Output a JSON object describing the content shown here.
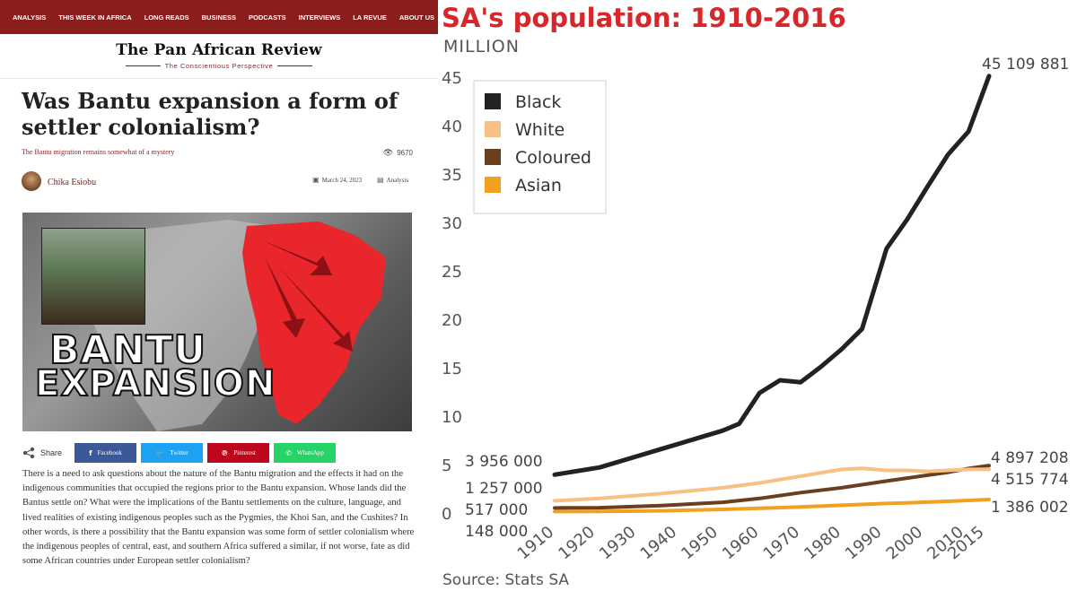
{
  "nav": {
    "items": [
      "ANALYSIS",
      "THIS WEEK IN AFRICA",
      "LONG READS",
      "BUSINESS",
      "PODCASTS",
      "INTERVIEWS",
      "LA REVUE",
      "ABOUT US"
    ]
  },
  "site": {
    "title": "The Pan African Review",
    "tagline": "The Conscientious Perspective"
  },
  "article": {
    "title": "Was Bantu expansion a form of settler colonialism?",
    "subtitle": "The Bantu migration remains somewhat of a mystery",
    "views": "9670",
    "author": "Chika Esiobu",
    "date": "March 24, 2023",
    "category": "Analysis",
    "hero_text_line1": "BANTU",
    "hero_text_line2": "EXPANSION",
    "body": "There is a need to ask questions about the nature of the Bantu migration and the effects it had on the indigenous communities that occupied the regions prior to the Bantu expansion. Whose lands did the Bantus settle on? What were the implications of the Bantu settlements on the culture, language, and lived realities of existing indigenous peoples such as the Pygmies, the Khoi San, and the Cushites? In other words, is there a possibility that the Bantu expansion was some form of settler colonialism where the indigenous peoples of central, east, and southern Africa suffered a similar, if not worse,  fate as did some African countries under European settler colonialism?"
  },
  "share": {
    "label": "Share",
    "buttons": [
      {
        "label": "Facebook",
        "icon": "f",
        "color": "#3b5998"
      },
      {
        "label": "Twitter",
        "icon": "t",
        "color": "#1da1f2"
      },
      {
        "label": "Pinterest",
        "icon": "p",
        "color": "#bd081c"
      },
      {
        "label": "WhatsApp",
        "icon": "w",
        "color": "#25d366"
      }
    ]
  },
  "chart_data": {
    "type": "line",
    "title": "SA's population: 1910-2016",
    "ylabel": "MILLION",
    "source": "Source: Stats SA",
    "ylim": [
      0,
      45
    ],
    "xlim": [
      1910,
      2016
    ],
    "yticks": [
      0,
      5,
      10,
      15,
      20,
      25,
      30,
      35,
      40,
      45
    ],
    "xticks": [
      1910,
      1920,
      1930,
      1940,
      1950,
      1960,
      1970,
      1980,
      1990,
      2000,
      2010,
      2015
    ],
    "series": [
      {
        "name": "Black",
        "color": "#222222",
        "x": [
          1910,
          1921,
          1936,
          1951,
          1955,
          1960,
          1965,
          1970,
          1975,
          1980,
          1985,
          1991,
          1996,
          2001,
          2006,
          2011,
          2016
        ],
        "y": [
          3.956,
          4.7,
          6.6,
          8.5,
          9.2,
          12.4,
          13.7,
          13.5,
          15.1,
          16.9,
          19.0,
          27.3,
          30.3,
          33.7,
          37.0,
          39.4,
          45.109881
        ],
        "start_label": "3 956 000",
        "end_label": "45 109 881"
      },
      {
        "name": "White",
        "color": "#f7c084",
        "x": [
          1910,
          1921,
          1936,
          1951,
          1960,
          1970,
          1980,
          1985,
          1991,
          1996,
          2001,
          2006,
          2011,
          2016
        ],
        "y": [
          1.257,
          1.5,
          2.0,
          2.6,
          3.1,
          3.8,
          4.5,
          4.6,
          4.4,
          4.4,
          4.3,
          4.4,
          4.5,
          4.515774
        ],
        "start_label": "1 257 000",
        "end_label": "4 515 774"
      },
      {
        "name": "Coloured",
        "color": "#6b3e1f",
        "x": [
          1910,
          1921,
          1936,
          1951,
          1960,
          1970,
          1980,
          1991,
          1996,
          2001,
          2006,
          2011,
          2016
        ],
        "y": [
          0.517,
          0.55,
          0.77,
          1.1,
          1.5,
          2.1,
          2.6,
          3.3,
          3.6,
          3.9,
          4.2,
          4.6,
          4.897208
        ],
        "start_label": "517 000",
        "end_label": "4 897 208"
      },
      {
        "name": "Asian",
        "color": "#f2a11f",
        "x": [
          1910,
          1921,
          1936,
          1951,
          1960,
          1970,
          1980,
          1991,
          1996,
          2001,
          2006,
          2011,
          2016
        ],
        "y": [
          0.148,
          0.17,
          0.22,
          0.37,
          0.48,
          0.62,
          0.8,
          0.98,
          1.05,
          1.12,
          1.2,
          1.3,
          1.386002
        ],
        "start_label": "148 000",
        "end_label": "1 386 002"
      }
    ],
    "legend": [
      "Black",
      "White",
      "Coloured",
      "Asian"
    ],
    "legend_placement": "top-left"
  }
}
